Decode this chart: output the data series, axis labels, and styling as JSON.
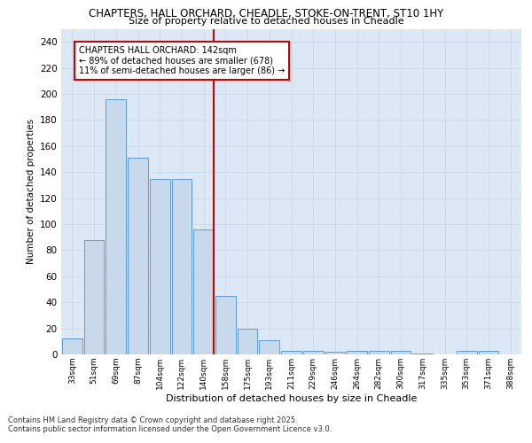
{
  "title_line1": "CHAPTERS, HALL ORCHARD, CHEADLE, STOKE-ON-TRENT, ST10 1HY",
  "title_line2": "Size of property relative to detached houses in Cheadle",
  "xlabel": "Distribution of detached houses by size in Cheadle",
  "ylabel": "Number of detached properties",
  "categories": [
    "33sqm",
    "51sqm",
    "69sqm",
    "87sqm",
    "104sqm",
    "122sqm",
    "140sqm",
    "158sqm",
    "175sqm",
    "193sqm",
    "211sqm",
    "229sqm",
    "246sqm",
    "264sqm",
    "282sqm",
    "300sqm",
    "317sqm",
    "335sqm",
    "353sqm",
    "371sqm",
    "388sqm"
  ],
  "values": [
    12,
    88,
    196,
    151,
    135,
    135,
    96,
    45,
    20,
    11,
    3,
    3,
    2,
    3,
    3,
    3,
    1,
    0,
    3,
    3,
    0
  ],
  "bar_color": "#c9d9ec",
  "bar_edge_color": "#5b9bd5",
  "grid_color": "#c8d8e8",
  "background_color": "#dce8f5",
  "vline_x_index": 6,
  "vline_color": "#cc0000",
  "annotation_text": "CHAPTERS HALL ORCHARD: 142sqm\n← 89% of detached houses are smaller (678)\n11% of semi-detached houses are larger (86) →",
  "annotation_box_color": "#ffffff",
  "annotation_box_edge": "#cc0000",
  "footer_line1": "Contains HM Land Registry data © Crown copyright and database right 2025.",
  "footer_line2": "Contains public sector information licensed under the Open Government Licence v3.0.",
  "ylim": [
    0,
    250
  ],
  "yticks": [
    0,
    20,
    40,
    60,
    80,
    100,
    120,
    140,
    160,
    180,
    200,
    220,
    240
  ]
}
